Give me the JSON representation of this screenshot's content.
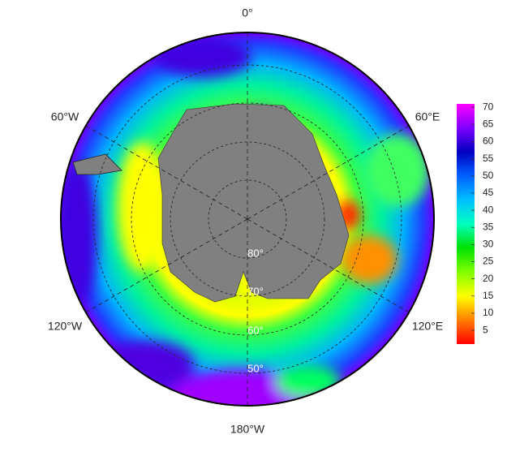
{
  "map": {
    "longitude_labels": [
      "0°",
      "60°E",
      "120°E",
      "180°W",
      "120°W",
      "60°W"
    ],
    "latitude_labels": [
      "80°",
      "70°",
      "60°",
      "50°"
    ],
    "colorbar": {
      "lim": [
        1,
        71
      ],
      "ticks": [
        5,
        10,
        15,
        20,
        25,
        30,
        35,
        40,
        45,
        50,
        55,
        60,
        65,
        70
      ],
      "colors": [
        "#ff0000",
        "#ff7f00",
        "#ffff00",
        "#7fff00",
        "#00e000",
        "#00ffc0",
        "#00c0ff",
        "#0060ff",
        "#0000c0",
        "#8000ff",
        "#ff00ff"
      ]
    }
  }
}
